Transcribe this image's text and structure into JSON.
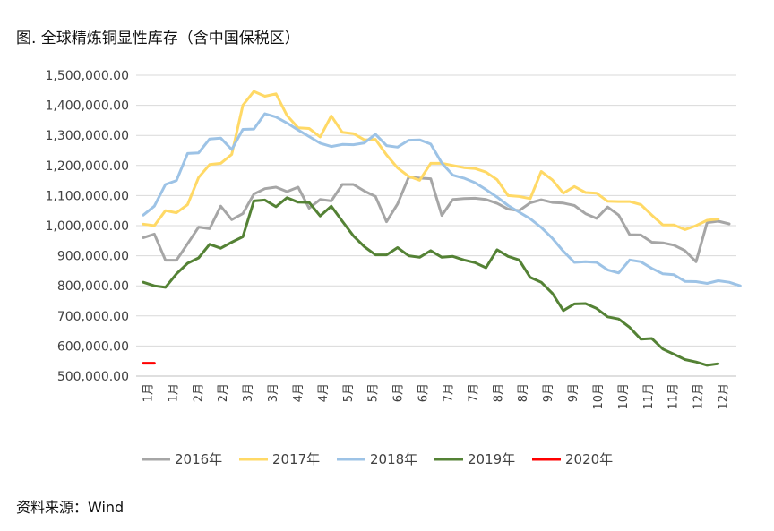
{
  "figure": {
    "title": "图.  全球精炼铜显性库存（含中国保税区）",
    "source": "资料来源：Wind"
  },
  "chart_data": {
    "type": "line",
    "title": "图.  全球精炼铜显性库存（含中国保税区）",
    "xlabel": "",
    "ylabel": "",
    "ylim": [
      500000,
      1500000
    ],
    "yticks": [
      "1,500,000.00",
      "1,400,000.00",
      "1,300,000.00",
      "1,200,000.00",
      "1,100,000.00",
      "1,000,000.00",
      "900,000.00",
      "800,000.00",
      "700,000.00",
      "600,000.00",
      "500,000.00"
    ],
    "x_tick_labels": [
      "1月",
      "1月",
      "2月",
      "2月",
      "3月",
      "3月",
      "4月",
      "4月",
      "5月",
      "5月",
      "6月",
      "6月",
      "7月",
      "7月",
      "8月",
      "8月",
      "9月",
      "9月",
      "10月",
      "10月",
      "11月",
      "11月",
      "12月",
      "12月"
    ],
    "grid": true,
    "legend_position": "bottom",
    "series": [
      {
        "name": "2016年",
        "color": "#a6a6a6",
        "values": [
          960000,
          972000,
          885000,
          885000,
          940000,
          995000,
          990000,
          1065000,
          1020000,
          1040000,
          1105000,
          1123000,
          1128000,
          1113000,
          1128000,
          1058000,
          1087000,
          1082000,
          1137000,
          1137000,
          1115000,
          1097000,
          1013000,
          1072000,
          1161000,
          1158000,
          1156000,
          1034000,
          1087000,
          1090000,
          1091000,
          1087000,
          1074000,
          1055000,
          1050000,
          1076000,
          1086000,
          1077000,
          1075000,
          1067000,
          1040000,
          1024000,
          1062000,
          1035000,
          970000,
          969000,
          945000,
          943000,
          935000,
          917000,
          880000,
          1010000,
          1015000,
          1006000
        ]
      },
      {
        "name": "2017年",
        "color": "#ffd966",
        "values": [
          1005000,
          1000000,
          1050000,
          1043000,
          1070000,
          1160000,
          1203000,
          1207000,
          1237000,
          1400000,
          1446000,
          1430000,
          1438000,
          1366000,
          1325000,
          1323000,
          1295000,
          1365000,
          1310000,
          1306000,
          1285000,
          1287000,
          1235000,
          1192000,
          1164000,
          1151000,
          1207000,
          1207000,
          1200000,
          1193000,
          1190000,
          1178000,
          1153000,
          1100000,
          1097000,
          1090000,
          1180000,
          1152000,
          1108000,
          1130000,
          1110000,
          1108000,
          1081000,
          1080000,
          1080000,
          1070000,
          1035000,
          1002000,
          1002000,
          987000,
          1000000,
          1018000,
          1022000
        ]
      },
      {
        "name": "2018年",
        "color": "#9dc3e6",
        "values": [
          1035000,
          1065000,
          1137000,
          1150000,
          1240000,
          1242000,
          1288000,
          1291000,
          1253000,
          1320000,
          1321000,
          1372000,
          1361000,
          1341000,
          1318000,
          1296000,
          1274000,
          1263000,
          1270000,
          1269000,
          1275000,
          1304000,
          1266000,
          1261000,
          1284000,
          1285000,
          1271000,
          1208000,
          1168000,
          1158000,
          1143000,
          1120000,
          1095000,
          1067000,
          1045000,
          1023000,
          994000,
          958000,
          915000,
          878000,
          880000,
          878000,
          853000,
          843000,
          886000,
          880000,
          858000,
          840000,
          837000,
          815000,
          814000,
          808000,
          817000,
          812000,
          800000
        ]
      },
      {
        "name": "2019年",
        "color": "#548235",
        "values": [
          812000,
          800000,
          795000,
          840000,
          875000,
          893000,
          938000,
          925000,
          945000,
          963000,
          1082000,
          1085000,
          1063000,
          1093000,
          1078000,
          1077000,
          1032000,
          1065000,
          1015000,
          966000,
          930000,
          903000,
          903000,
          927000,
          900000,
          895000,
          917000,
          895000,
          898000,
          886000,
          877000,
          860000,
          920000,
          898000,
          886000,
          828000,
          812000,
          775000,
          718000,
          740000,
          741000,
          725000,
          697000,
          690000,
          662000,
          623000,
          625000,
          590000,
          573000,
          555000,
          547000,
          536000,
          541000
        ]
      },
      {
        "name": "2020年",
        "color": "#ff0000",
        "values": [
          543000,
          543000
        ]
      }
    ]
  }
}
